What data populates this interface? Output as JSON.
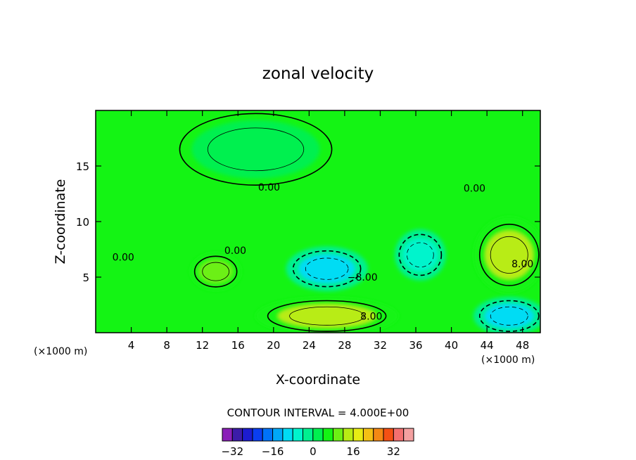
{
  "chart_data": {
    "type": "heatmap",
    "title": "zonal velocity",
    "xlabel": "X-coordinate",
    "ylabel": "Z-coordinate",
    "x_unit": "(×1000 m)",
    "z_unit": "(×1000 m)",
    "xlim": [
      0,
      50
    ],
    "ylim": [
      0,
      20
    ],
    "x_ticks": [
      4,
      8,
      12,
      16,
      20,
      24,
      28,
      32,
      36,
      40,
      44,
      48
    ],
    "y_ticks": [
      5,
      10,
      15
    ],
    "contour_interval_text": "CONTOUR INTERVAL = 4.000E+00",
    "contour_labels": [
      {
        "text": "0.00",
        "x": 19.5,
        "z": 13.1
      },
      {
        "text": "0.00",
        "x": 42.6,
        "z": 13.0
      },
      {
        "text": "0.00",
        "x": 3.1,
        "z": 6.8
      },
      {
        "text": "0.00",
        "x": 15.7,
        "z": 7.4
      },
      {
        "text": "-8.00",
        "x": 30.0,
        "z": 5.0
      },
      {
        "text": "8.00",
        "x": 31.0,
        "z": 1.5
      },
      {
        "text": "8.00",
        "x": 48.0,
        "z": 6.2
      }
    ],
    "features": [
      {
        "name": "upper stagnant region",
        "x": [
          9,
          27
        ],
        "z": [
          13,
          20
        ],
        "value": 0
      },
      {
        "name": "westward jet core",
        "x": [
          22,
          30
        ],
        "z": [
          4,
          7.5
        ],
        "value": -12
      },
      {
        "name": "westward cell",
        "x": [
          34,
          39
        ],
        "z": [
          5,
          9
        ],
        "value": -8
      },
      {
        "name": "eastward jet core",
        "x": [
          43,
          50
        ],
        "z": [
          4,
          10
        ],
        "value": 14
      },
      {
        "name": "eastward near-surface jet",
        "x": [
          19,
          33
        ],
        "z": [
          0,
          3
        ],
        "value": 12
      },
      {
        "name": "eastward cell",
        "x": [
          11,
          16
        ],
        "z": [
          4,
          7
        ],
        "value": 10
      },
      {
        "name": "westward near-bed cell",
        "x": [
          43,
          50
        ],
        "z": [
          0,
          3
        ],
        "value": -12
      }
    ],
    "colorbar": {
      "levels": [
        -36,
        -32,
        -28,
        -24,
        -20,
        -16,
        -12,
        -8,
        -4,
        0,
        4,
        8,
        12,
        16,
        20,
        24,
        28,
        32,
        36
      ],
      "tick_labels": [
        "-32",
        "-16",
        "0",
        "16",
        "32"
      ],
      "colors": [
        "#8a1fb8",
        "#3c1ca8",
        "#1c1cd0",
        "#0a3ef0",
        "#0072f8",
        "#00a8f8",
        "#00dcf4",
        "#00f4cc",
        "#00f090",
        "#00f050",
        "#14f414",
        "#6cf014",
        "#b8ec14",
        "#e8ec14",
        "#f4c014",
        "#f48814",
        "#f45014",
        "#f47070",
        "#f4a0a0"
      ]
    }
  }
}
